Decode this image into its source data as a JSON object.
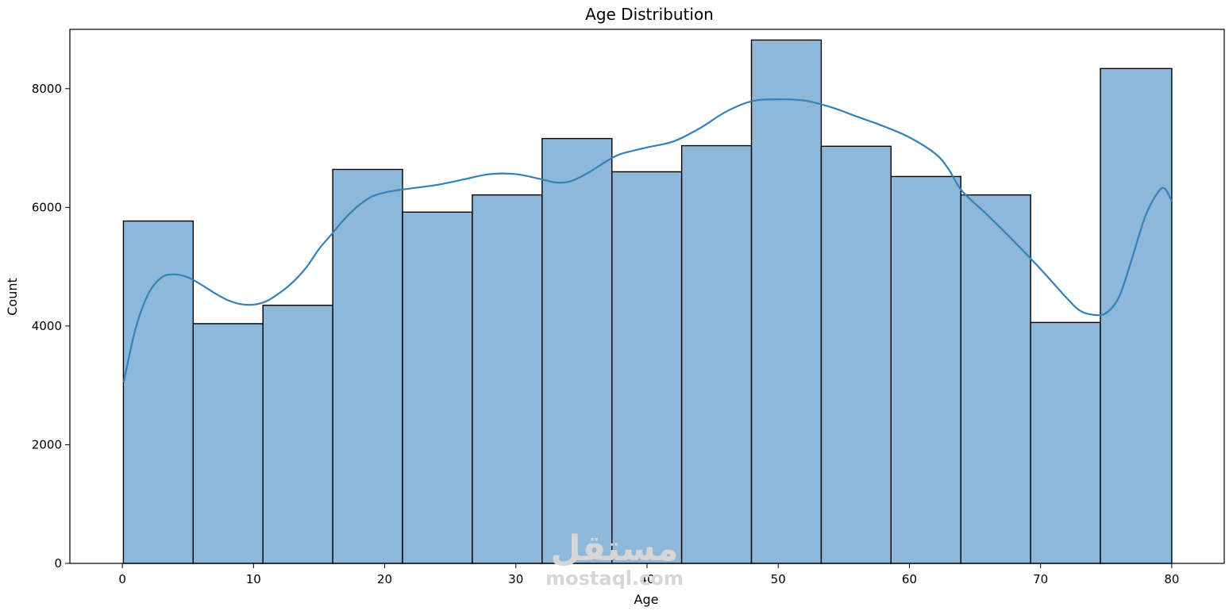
{
  "chart_data": {
    "type": "bar",
    "subtype": "histogram_with_kde",
    "title": "Age Distribution",
    "xlabel": "Age",
    "ylabel": "Count",
    "xlim": [
      -4,
      84
    ],
    "ylim": [
      0,
      9000
    ],
    "x_ticks": [
      0,
      10,
      20,
      30,
      40,
      50,
      60,
      70,
      80
    ],
    "y_ticks": [
      0,
      2000,
      4000,
      6000,
      8000
    ],
    "bin_edges": [
      0.08,
      5.4,
      10.72,
      16.04,
      21.36,
      26.68,
      32.0,
      37.32,
      42.64,
      47.96,
      53.28,
      58.6,
      63.92,
      69.24,
      74.56,
      80.0
    ],
    "values": [
      5770,
      4040,
      4350,
      6640,
      5920,
      6210,
      7160,
      6600,
      7040,
      8820,
      7030,
      6520,
      6210,
      4060,
      8340
    ],
    "kde": {
      "x": [
        0.1,
        1.0,
        2.0,
        3.0,
        4.0,
        5.0,
        6.0,
        7.0,
        8.0,
        9.0,
        10.0,
        11.0,
        12.0,
        13.0,
        14.0,
        15.0,
        16.0,
        17.0,
        18.0,
        19.0,
        20.0,
        21.0,
        22.0,
        24.0,
        26.0,
        28.0,
        30.0,
        32.0,
        33.0,
        34.0,
        35.0,
        36.0,
        37.0,
        38.0,
        40.0,
        42.0,
        44.0,
        46.0,
        48.0,
        50.0,
        52.0,
        54.0,
        56.0,
        58.0,
        60.0,
        62.0,
        63.0,
        64.0,
        66.0,
        68.0,
        70.0,
        72.0,
        73.0,
        74.0,
        75.0,
        76.0,
        77.0,
        78.0,
        79.0,
        79.5,
        80.0
      ],
      "y": [
        3050,
        3950,
        4550,
        4820,
        4870,
        4820,
        4700,
        4560,
        4440,
        4370,
        4360,
        4420,
        4560,
        4740,
        4980,
        5300,
        5560,
        5820,
        6030,
        6180,
        6250,
        6290,
        6320,
        6380,
        6470,
        6560,
        6560,
        6470,
        6420,
        6430,
        6520,
        6650,
        6790,
        6900,
        7010,
        7110,
        7330,
        7610,
        7790,
        7820,
        7800,
        7690,
        7530,
        7370,
        7180,
        6900,
        6640,
        6280,
        5860,
        5420,
        4960,
        4470,
        4260,
        4190,
        4220,
        4500,
        5160,
        5860,
        6270,
        6310,
        6100
      ]
    },
    "bar_color": "#8eb8d9",
    "bar_edge_color": "#000000",
    "kde_color": "#3480b9",
    "grid": false,
    "legend": "none"
  },
  "watermark": {
    "logo": "مستقل",
    "text": "mostaql.com"
  }
}
